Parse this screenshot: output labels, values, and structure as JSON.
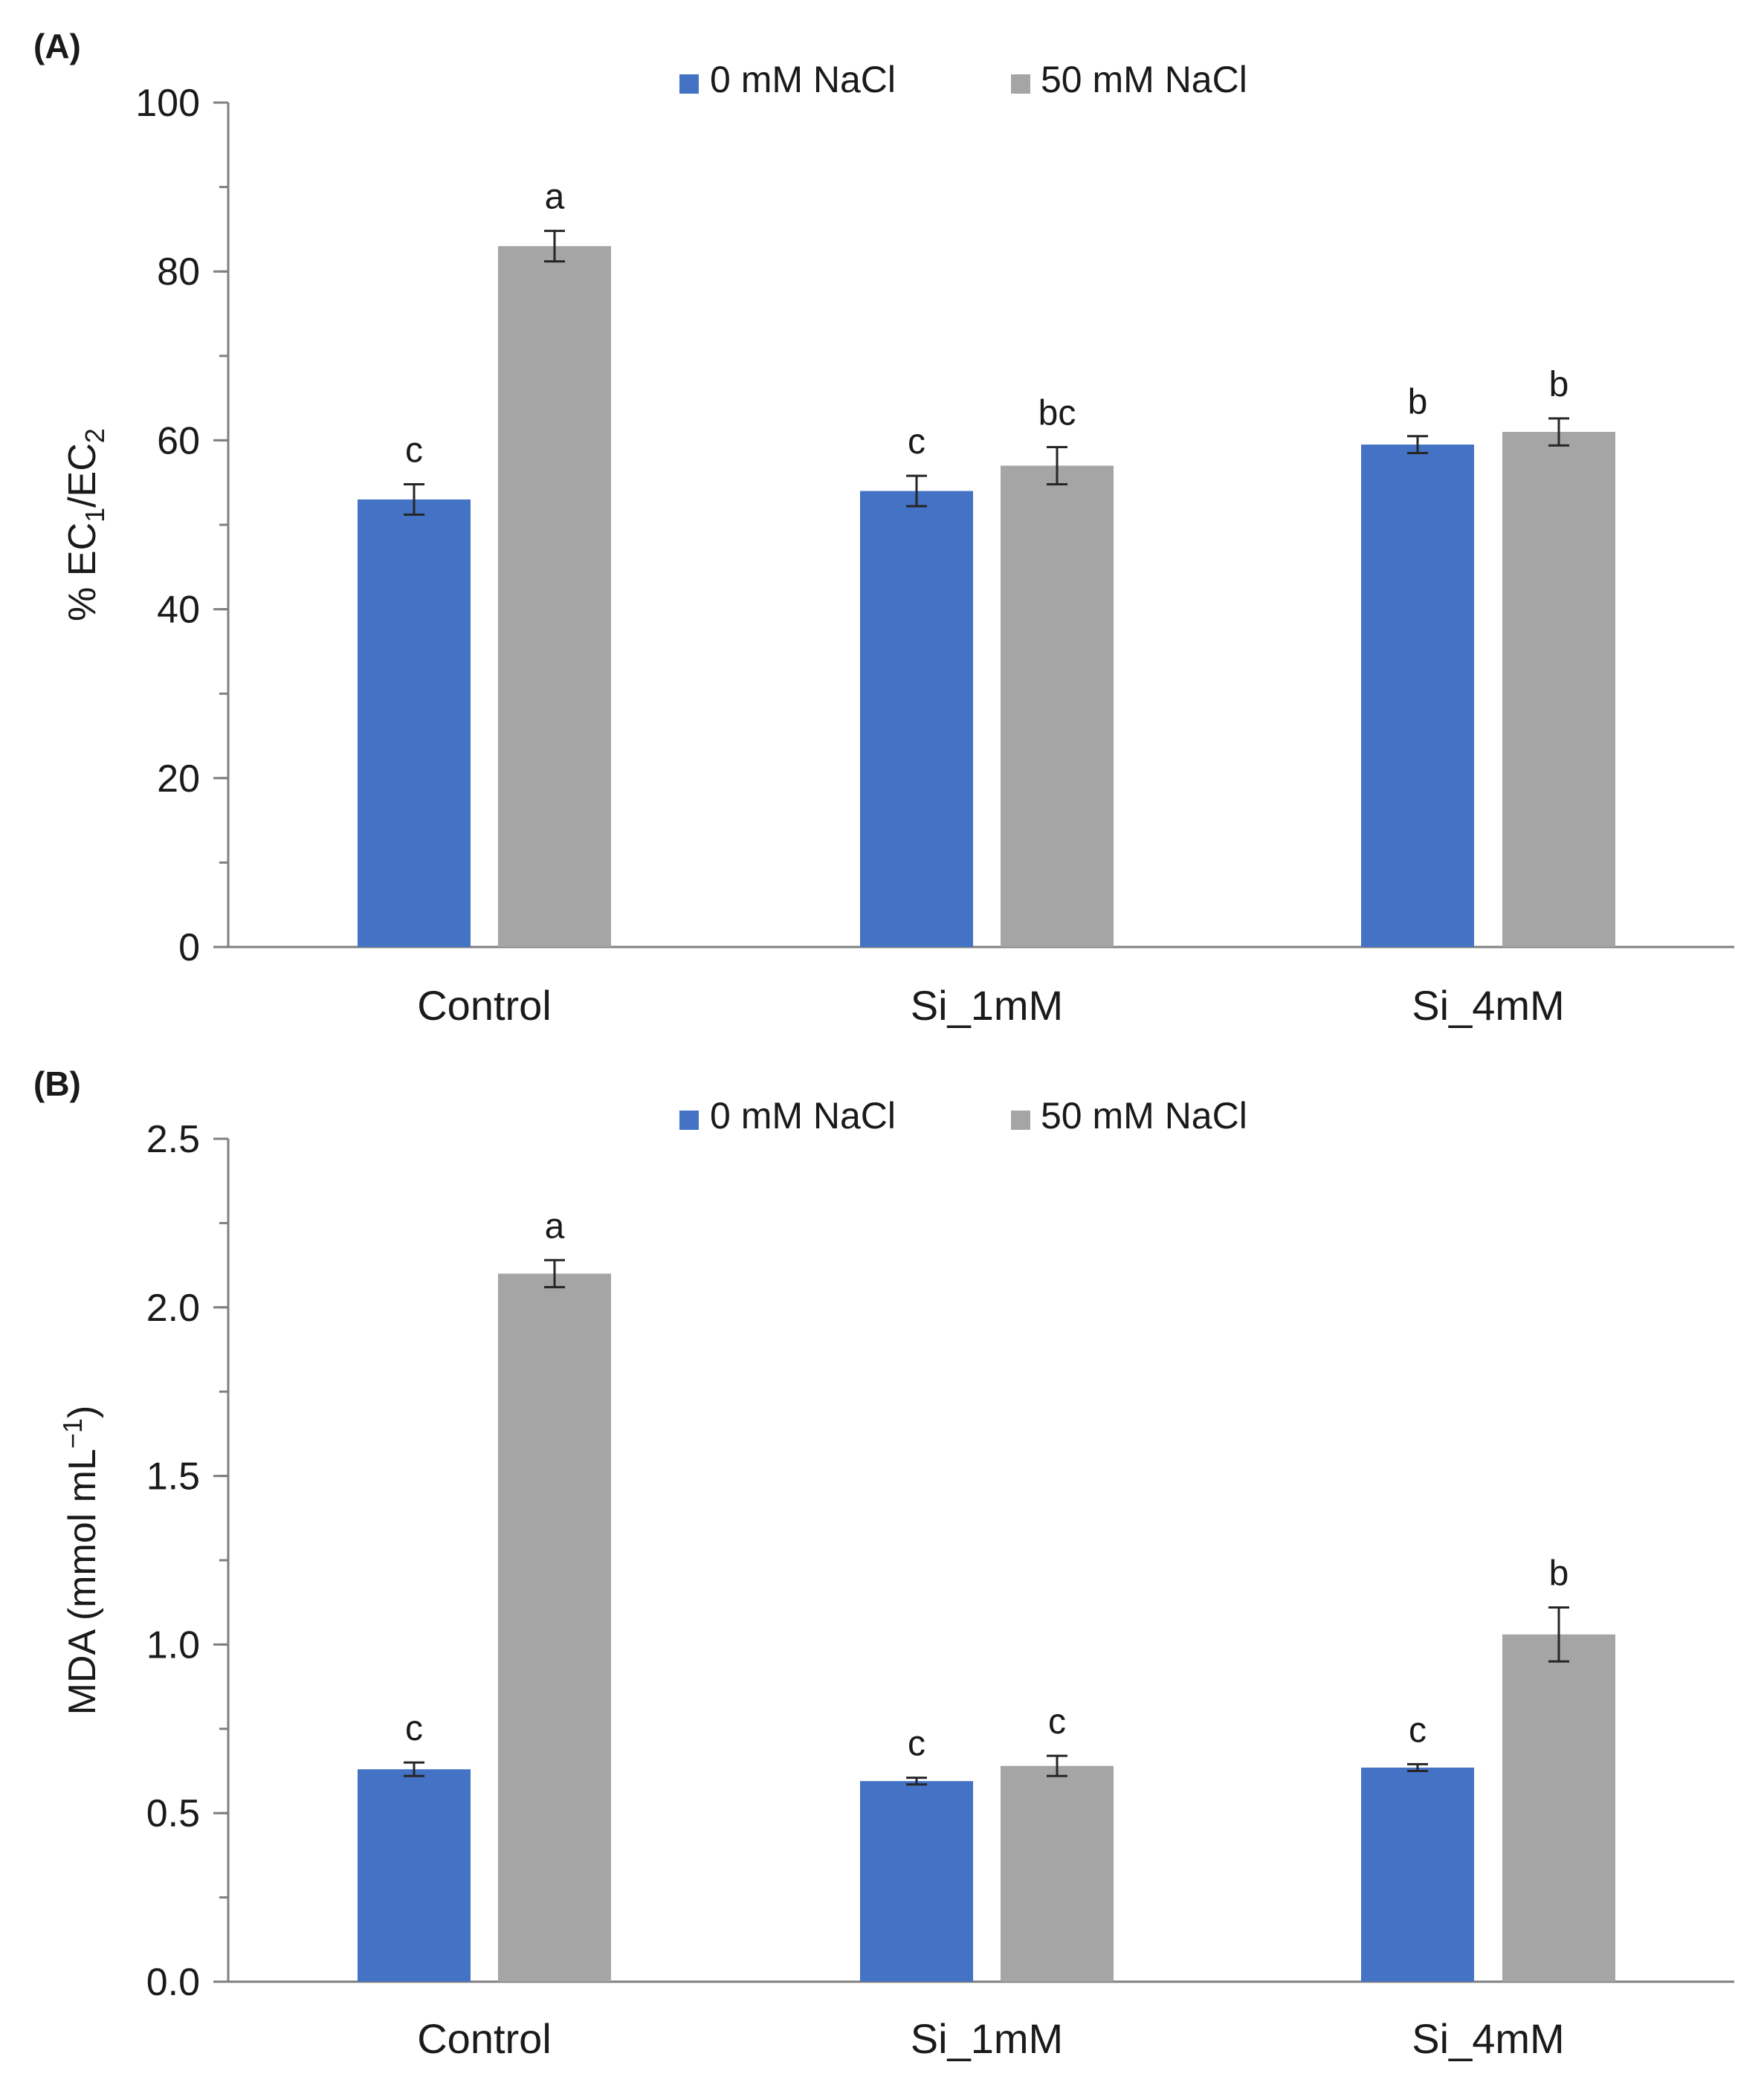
{
  "chart_data": [
    {
      "panel_label": "(A)",
      "type": "bar",
      "categories": [
        "Control",
        "Si_1mM",
        "Si_4mM"
      ],
      "series": [
        {
          "name": "0 mM NaCl",
          "color": "#4472c4",
          "values": [
            53,
            54,
            59.5
          ],
          "errors": [
            1.8,
            1.8,
            1
          ],
          "letters": [
            "c",
            "c",
            "b"
          ]
        },
        {
          "name": "50 mM NaCl",
          "color": "#a5a5a5",
          "values": [
            83,
            57,
            61
          ],
          "errors": [
            1.8,
            2.2,
            1.6
          ],
          "letters": [
            "a",
            "bc",
            "b"
          ]
        }
      ],
      "ylabel": {
        "main": "% EC",
        "sub1": "1",
        "slash": "/EC",
        "sub2": "2"
      },
      "ylim": [
        0,
        100
      ],
      "yticks": [
        "0",
        "20",
        "40",
        "60",
        "80",
        "100"
      ],
      "yminor_step": 10,
      "legend_position": "top-center"
    },
    {
      "panel_label": "(B)",
      "type": "bar",
      "categories": [
        "Control",
        "Si_1mM",
        "Si_4mM"
      ],
      "series": [
        {
          "name": "0 mM NaCl",
          "color": "#4472c4",
          "values": [
            0.63,
            0.595,
            0.635
          ],
          "errors": [
            0.02,
            0.01,
            0.01
          ],
          "letters": [
            "c",
            "c",
            "c"
          ]
        },
        {
          "name": "50 mM NaCl",
          "color": "#a5a5a5",
          "values": [
            2.1,
            0.64,
            1.03
          ],
          "errors": [
            0.04,
            0.03,
            0.08
          ],
          "letters": [
            "a",
            "c",
            "b"
          ]
        }
      ],
      "ylabel": {
        "main": "MDA (mmol mL",
        "sup": "−1",
        "close": ")"
      },
      "ylim": [
        0,
        2.5
      ],
      "yticks": [
        "0.0",
        "0.5",
        "1.0",
        "1.5",
        "2.0",
        "2.5"
      ],
      "yminor_step": 0.25,
      "legend_position": "top-center"
    }
  ]
}
